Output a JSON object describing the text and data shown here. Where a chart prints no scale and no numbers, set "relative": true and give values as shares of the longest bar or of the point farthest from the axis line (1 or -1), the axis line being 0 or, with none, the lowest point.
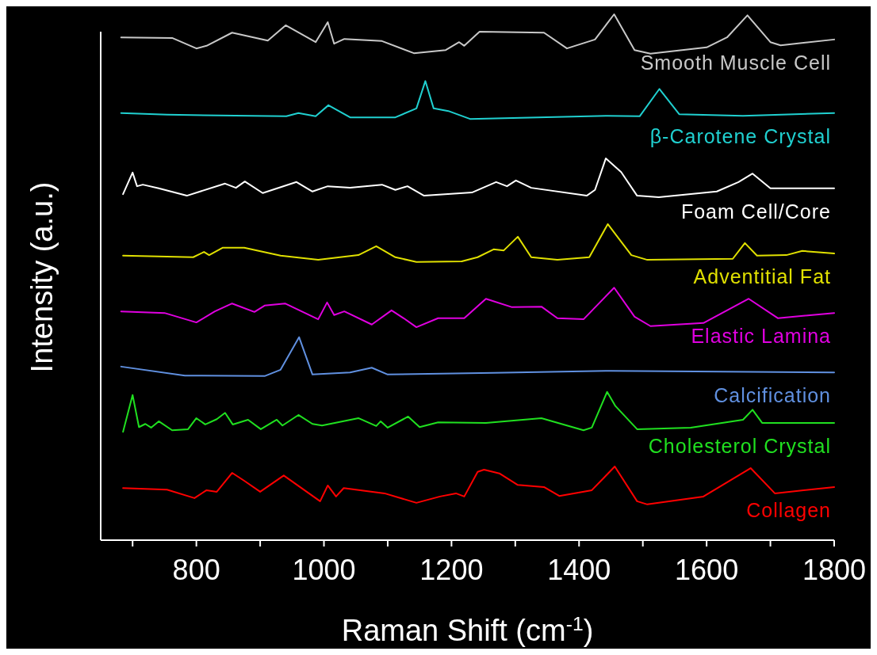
{
  "chart_data": {
    "type": "line",
    "relative": true,
    "xlabel": "Raman Shift (cm$^{-1}$)",
    "ylabel": "Intensity (a.u.)",
    "xlim": [
      650,
      1800
    ],
    "xticks": [
      {
        "value": 700,
        "label": null
      },
      800,
      {
        "value": 900,
        "label": null
      },
      1000,
      {
        "value": 1100,
        "label": null
      },
      1200,
      {
        "value": 1300,
        "label": null
      },
      1400,
      {
        "value": 1500,
        "label": null
      },
      1600,
      {
        "value": 1700,
        "label": null
      },
      1800
    ],
    "marker": "none",
    "line_style": "solid",
    "series": [
      {
        "name": "Smooth Muscle Cell",
        "color": "#c8c8c8",
        "x": [
          682,
          762,
          800,
          816,
          856,
          912,
          940,
          987,
          1006,
          1016,
          1032,
          1091,
          1141,
          1191,
          1212,
          1220,
          1244,
          1345,
          1381,
          1425,
          1455,
          1487,
          1512,
          1600,
          1632,
          1664,
          1700,
          1716,
          1800
        ],
        "values": [
          0.956,
          0.955,
          0.935,
          0.94,
          0.965,
          0.95,
          0.979,
          0.947,
          0.985,
          0.944,
          0.953,
          0.949,
          0.926,
          0.932,
          0.947,
          0.94,
          0.967,
          0.965,
          0.935,
          0.952,
          1.0,
          0.932,
          0.925,
          0.937,
          0.956,
          0.998,
          0.947,
          0.941,
          0.952
        ]
      },
      {
        "name": "β-Carotene Crystal",
        "color": "#20d0d0",
        "x": [
          682,
          754,
          941,
          960,
          987,
          1007,
          1041,
          1112,
          1145,
          1159,
          1172,
          1195,
          1229,
          1445,
          1495,
          1526,
          1557,
          1657,
          1800
        ],
        "values": [
          0.812,
          0.809,
          0.806,
          0.812,
          0.806,
          0.827,
          0.804,
          0.804,
          0.821,
          0.873,
          0.821,
          0.816,
          0.801,
          0.807,
          0.806,
          0.858,
          0.81,
          0.807,
          0.812
        ]
      },
      {
        "name": "Foam Cell/Core",
        "color": "#ffffff",
        "x": [
          685,
          700,
          707,
          716,
          741,
          785,
          845,
          862,
          876,
          904,
          957,
          982,
          1006,
          1041,
          1091,
          1112,
          1131,
          1157,
          1232,
          1270,
          1287,
          1301,
          1325,
          1412,
          1425,
          1442,
          1466,
          1491,
          1525,
          1616,
          1650,
          1672,
          1700,
          1800
        ],
        "values": [
          0.658,
          0.699,
          0.673,
          0.676,
          0.669,
          0.655,
          0.678,
          0.67,
          0.682,
          0.66,
          0.681,
          0.663,
          0.673,
          0.67,
          0.676,
          0.666,
          0.673,
          0.655,
          0.661,
          0.681,
          0.673,
          0.684,
          0.67,
          0.655,
          0.666,
          0.726,
          0.7,
          0.655,
          0.652,
          0.663,
          0.681,
          0.697,
          0.669,
          0.669
        ]
      },
      {
        "name": "Adventitial Fat",
        "color": "#e0e000",
        "x": [
          685,
          795,
          812,
          820,
          841,
          875,
          932,
          991,
          1054,
          1082,
          1112,
          1145,
          1216,
          1241,
          1266,
          1282,
          1304,
          1325,
          1366,
          1416,
          1445,
          1482,
          1507,
          1641,
          1660,
          1679,
          1725,
          1750,
          1800
        ],
        "values": [
          0.541,
          0.538,
          0.548,
          0.542,
          0.556,
          0.556,
          0.541,
          0.533,
          0.542,
          0.559,
          0.538,
          0.529,
          0.53,
          0.538,
          0.553,
          0.551,
          0.577,
          0.538,
          0.533,
          0.538,
          0.601,
          0.542,
          0.533,
          0.535,
          0.565,
          0.541,
          0.542,
          0.55,
          0.545
        ]
      },
      {
        "name": "Elastic Lamina",
        "color": "#e000e0",
        "x": [
          682,
          750,
          800,
          829,
          856,
          891,
          907,
          939,
          991,
          1005,
          1016,
          1032,
          1075,
          1106,
          1125,
          1145,
          1179,
          1220,
          1254,
          1295,
          1341,
          1366,
          1407,
          1455,
          1487,
          1512,
          1595,
          1666,
          1712,
          1800
        ],
        "values": [
          0.435,
          0.432,
          0.414,
          0.435,
          0.45,
          0.434,
          0.446,
          0.45,
          0.42,
          0.452,
          0.428,
          0.435,
          0.41,
          0.437,
          0.422,
          0.405,
          0.422,
          0.422,
          0.459,
          0.443,
          0.444,
          0.422,
          0.42,
          0.48,
          0.425,
          0.407,
          0.413,
          0.459,
          0.422,
          0.432
        ]
      },
      {
        "name": "Calcification",
        "color": "#6090e0",
        "x": [
          682,
          782,
          907,
          932,
          961,
          982,
          1041,
          1075,
          1100,
          1266,
          1450,
          1800
        ],
        "values": [
          0.33,
          0.313,
          0.312,
          0.324,
          0.386,
          0.315,
          0.319,
          0.328,
          0.315,
          0.318,
          0.322,
          0.319
        ]
      },
      {
        "name": "Cholesterol Crystal",
        "color": "#20e020",
        "x": [
          685,
          700,
          710,
          720,
          729,
          741,
          762,
          787,
          800,
          814,
          832,
          845,
          857,
          881,
          901,
          926,
          935,
          960,
          982,
          997,
          1054,
          1082,
          1089,
          1100,
          1132,
          1150,
          1179,
          1254,
          1341,
          1407,
          1420,
          1444,
          1457,
          1491,
          1575,
          1657,
          1672,
          1687,
          1800
        ],
        "values": [
          0.206,
          0.276,
          0.215,
          0.221,
          0.214,
          0.226,
          0.209,
          0.211,
          0.232,
          0.22,
          0.23,
          0.242,
          0.22,
          0.229,
          0.211,
          0.229,
          0.218,
          0.238,
          0.221,
          0.218,
          0.232,
          0.217,
          0.226,
          0.214,
          0.235,
          0.215,
          0.224,
          0.223,
          0.232,
          0.209,
          0.214,
          0.282,
          0.255,
          0.211,
          0.214,
          0.229,
          0.248,
          0.223,
          0.223
        ]
      },
      {
        "name": "Collagen",
        "color": "#ff0000",
        "x": [
          685,
          754,
          797,
          816,
          832,
          856,
          875,
          900,
          937,
          994,
          1006,
          1019,
          1031,
          1095,
          1145,
          1182,
          1207,
          1220,
          1241,
          1251,
          1275,
          1304,
          1345,
          1369,
          1420,
          1456,
          1491,
          1507,
          1595,
          1669,
          1707,
          1800
        ],
        "values": [
          0.099,
          0.096,
          0.08,
          0.095,
          0.092,
          0.128,
          0.113,
          0.092,
          0.123,
          0.074,
          0.104,
          0.083,
          0.099,
          0.089,
          0.071,
          0.083,
          0.089,
          0.083,
          0.13,
          0.134,
          0.127,
          0.105,
          0.101,
          0.084,
          0.095,
          0.14,
          0.074,
          0.068,
          0.083,
          0.137,
          0.089,
          0.101
        ]
      }
    ]
  }
}
